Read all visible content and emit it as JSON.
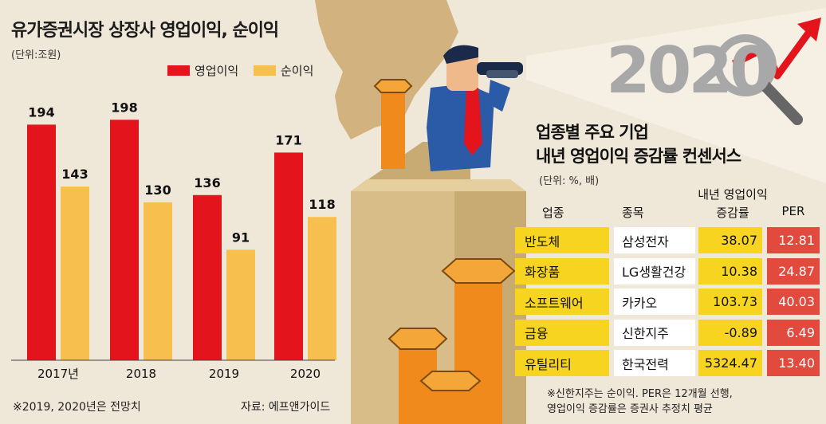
{
  "chart_data": {
    "type": "bar",
    "title": "유가증권시장 상장사 영업이익, 순이익",
    "unit": "(단위:조원)",
    "categories": [
      "2017년",
      "2018",
      "2019",
      "2020"
    ],
    "series": [
      {
        "name": "영업이익",
        "values": [
          194,
          198,
          136,
          171
        ],
        "color": "#e3141c"
      },
      {
        "name": "순이익",
        "values": [
          143,
          130,
          91,
          118
        ],
        "color": "#f7c04e"
      }
    ],
    "ylim": [
      0,
      210
    ],
    "legend_position": "top"
  },
  "footnote": "※2019, 2020년은 전망치",
  "source": "자료: 에프앤가이드",
  "illustration": {
    "year_text": "2020",
    "icons": [
      "binoculars-man-icon",
      "rising-arrow-icon",
      "magnifier-icon",
      "chimney-icon"
    ]
  },
  "table": {
    "title_line1": "업종별 주요 기업",
    "title_line2": "내년 영업이익 증감률 컨센서스",
    "unit": "(단위: %, 배)",
    "headers": {
      "industry": "업종",
      "company": "종목",
      "growth_line1": "내년 영업이익",
      "growth_line2": "증감률",
      "per": "PER"
    },
    "rows": [
      {
        "industry": "반도체",
        "company": "삼성전자",
        "growth": "38.07",
        "per": "12.81"
      },
      {
        "industry": "화장품",
        "company": "LG생활건강",
        "growth": "10.38",
        "per": "24.87"
      },
      {
        "industry": "소프트웨어",
        "company": "카카오",
        "growth": "103.73",
        "per": "40.03"
      },
      {
        "industry": "금융",
        "company": "신한지주",
        "growth": "-0.89",
        "per": "6.49"
      },
      {
        "industry": "유틸리티",
        "company": "한국전력",
        "growth": "5324.47",
        "per": "13.40"
      }
    ],
    "note_line1": "※신한지주는 순이익. PER은 12개월 선행,",
    "note_line2": "영업이익 증감률은 증권사 추정치 평균"
  },
  "colors": {
    "background": "#efe7d7",
    "operating_profit": "#e3141c",
    "net_profit": "#f7c04e",
    "table_yellow": "#f7d41f",
    "table_red": "#e14a3c"
  }
}
